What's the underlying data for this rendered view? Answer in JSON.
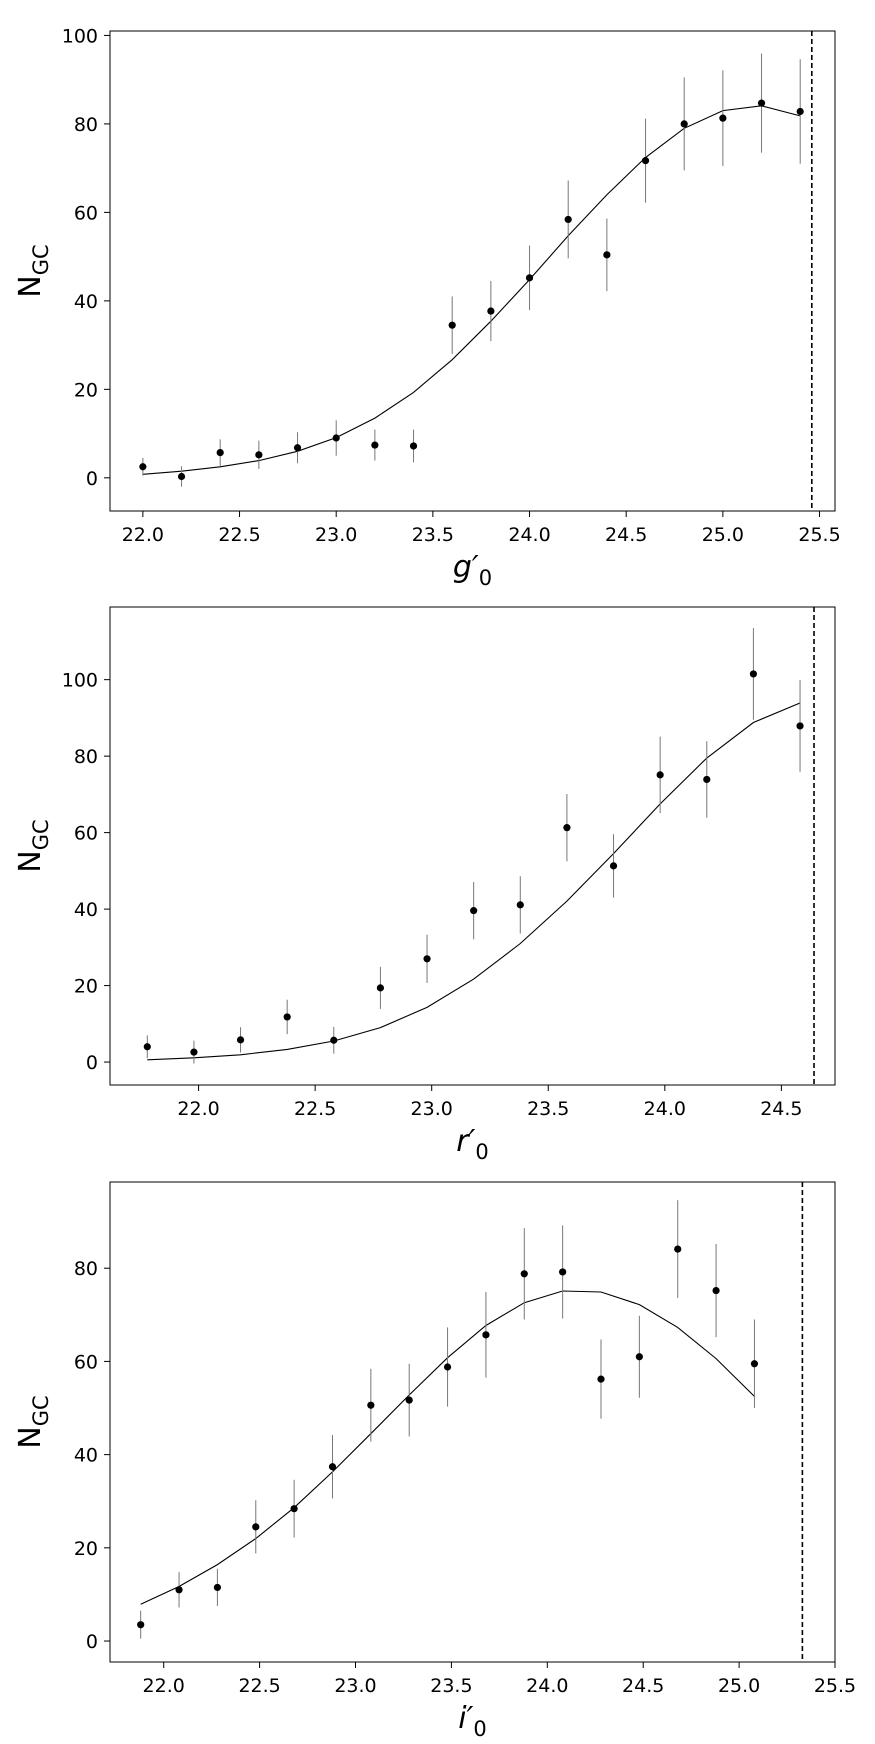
{
  "chart_data": [
    {
      "type": "scatter",
      "panel": "g",
      "xlabel": "g′",
      "xlabel_sub": "0",
      "ylabel": "N",
      "ylabel_sub": "GC",
      "xlim": [
        21.83,
        25.58
      ],
      "ylim": [
        -7.5,
        101
      ],
      "xticks": [
        22.0,
        22.5,
        23.0,
        23.5,
        24.0,
        24.5,
        25.0,
        25.5
      ],
      "yticks": [
        0,
        20,
        40,
        60,
        80,
        100
      ],
      "points": [
        {
          "x": 22.0,
          "y": 2.5,
          "err": 2.0
        },
        {
          "x": 22.2,
          "y": 0.3,
          "err": 2.3
        },
        {
          "x": 22.4,
          "y": 5.7,
          "err": 3.0
        },
        {
          "x": 22.6,
          "y": 5.2,
          "err": 3.2
        },
        {
          "x": 22.8,
          "y": 6.8,
          "err": 3.5
        },
        {
          "x": 23.0,
          "y": 9.0,
          "err": 4.0
        },
        {
          "x": 23.2,
          "y": 7.4,
          "err": 3.5
        },
        {
          "x": 23.4,
          "y": 7.2,
          "err": 3.7
        },
        {
          "x": 23.6,
          "y": 34.5,
          "err": 6.5
        },
        {
          "x": 23.8,
          "y": 37.7,
          "err": 6.8
        },
        {
          "x": 24.0,
          "y": 45.2,
          "err": 7.3
        },
        {
          "x": 24.2,
          "y": 58.4,
          "err": 8.8
        },
        {
          "x": 24.4,
          "y": 50.4,
          "err": 8.2
        },
        {
          "x": 24.6,
          "y": 71.7,
          "err": 9.5
        },
        {
          "x": 24.8,
          "y": 80.0,
          "err": 10.5
        },
        {
          "x": 25.0,
          "y": 81.3,
          "err": 10.8
        },
        {
          "x": 25.2,
          "y": 84.7,
          "err": 11.2
        },
        {
          "x": 25.4,
          "y": 82.8,
          "err": 11.8
        }
      ],
      "curve": [
        [
          22.0,
          0.8
        ],
        [
          22.2,
          1.5
        ],
        [
          22.4,
          2.5
        ],
        [
          22.6,
          3.9
        ],
        [
          22.8,
          6.0
        ],
        [
          23.0,
          9.1
        ],
        [
          23.2,
          13.5
        ],
        [
          23.4,
          19.3
        ],
        [
          23.6,
          26.7
        ],
        [
          23.8,
          35.4
        ],
        [
          24.0,
          44.8
        ],
        [
          24.2,
          54.7
        ],
        [
          24.4,
          64.0
        ],
        [
          24.6,
          72.4
        ],
        [
          24.8,
          79.0
        ],
        [
          25.0,
          83.0
        ],
        [
          25.2,
          84.1
        ],
        [
          25.4,
          81.8
        ]
      ],
      "limit_line_x": 25.46
    },
    {
      "type": "scatter",
      "panel": "r",
      "xlabel": "r′",
      "xlabel_sub": "0",
      "ylabel": "N",
      "ylabel_sub": "GC",
      "xlim": [
        21.62,
        24.73
      ],
      "ylim": [
        -6,
        119
      ],
      "xticks": [
        22.0,
        22.5,
        23.0,
        23.5,
        24.0,
        24.5
      ],
      "yticks": [
        0,
        20,
        40,
        60,
        80,
        100
      ],
      "points": [
        {
          "x": 21.78,
          "y": 4.0,
          "err": 3.0
        },
        {
          "x": 21.98,
          "y": 2.6,
          "err": 3.0
        },
        {
          "x": 22.18,
          "y": 5.8,
          "err": 3.3
        },
        {
          "x": 22.38,
          "y": 11.8,
          "err": 4.5
        },
        {
          "x": 22.58,
          "y": 5.7,
          "err": 3.5
        },
        {
          "x": 22.78,
          "y": 19.4,
          "err": 5.5
        },
        {
          "x": 22.98,
          "y": 27.0,
          "err": 6.3
        },
        {
          "x": 23.18,
          "y": 39.6,
          "err": 7.5
        },
        {
          "x": 23.38,
          "y": 41.1,
          "err": 7.5
        },
        {
          "x": 23.58,
          "y": 61.3,
          "err": 8.8
        },
        {
          "x": 23.78,
          "y": 51.3,
          "err": 8.3
        },
        {
          "x": 23.98,
          "y": 75.1,
          "err": 10.0
        },
        {
          "x": 24.18,
          "y": 73.9,
          "err": 10.0
        },
        {
          "x": 24.38,
          "y": 101.5,
          "err": 12.0
        },
        {
          "x": 24.58,
          "y": 87.9,
          "err": 12.0
        }
      ],
      "curve": [
        [
          21.78,
          0.6
        ],
        [
          21.98,
          1.1
        ],
        [
          22.18,
          1.9
        ],
        [
          22.38,
          3.3
        ],
        [
          22.58,
          5.5
        ],
        [
          22.78,
          9.0
        ],
        [
          22.98,
          14.3
        ],
        [
          23.18,
          21.7
        ],
        [
          23.38,
          31.0
        ],
        [
          23.58,
          42.1
        ],
        [
          23.78,
          54.5
        ],
        [
          23.98,
          67.5
        ],
        [
          24.18,
          79.5
        ],
        [
          24.38,
          88.8
        ],
        [
          24.58,
          93.9
        ]
      ],
      "limit_line_x": 24.64
    },
    {
      "type": "scatter",
      "panel": "i",
      "xlabel": "i′",
      "xlabel_sub": "0",
      "ylabel": "N",
      "ylabel_sub": "GC",
      "xlim": [
        21.72,
        25.5
      ],
      "ylim": [
        -4.5,
        98.5
      ],
      "xticks": [
        22.0,
        22.5,
        23.0,
        23.5,
        24.0,
        24.5,
        25.0,
        25.5
      ],
      "yticks": [
        0,
        20,
        40,
        60,
        80
      ],
      "points": [
        {
          "x": 21.88,
          "y": 3.5,
          "err": 3.0
        },
        {
          "x": 22.08,
          "y": 11.0,
          "err": 3.8
        },
        {
          "x": 22.28,
          "y": 11.5,
          "err": 4.0
        },
        {
          "x": 22.48,
          "y": 24.5,
          "err": 5.7
        },
        {
          "x": 22.68,
          "y": 28.4,
          "err": 6.2
        },
        {
          "x": 22.88,
          "y": 37.4,
          "err": 6.8
        },
        {
          "x": 23.08,
          "y": 50.6,
          "err": 7.8
        },
        {
          "x": 23.28,
          "y": 51.7,
          "err": 7.8
        },
        {
          "x": 23.48,
          "y": 58.8,
          "err": 8.5
        },
        {
          "x": 23.68,
          "y": 65.7,
          "err": 9.2
        },
        {
          "x": 23.88,
          "y": 78.8,
          "err": 9.8
        },
        {
          "x": 24.08,
          "y": 79.2,
          "err": 10.0
        },
        {
          "x": 24.28,
          "y": 56.2,
          "err": 8.5
        },
        {
          "x": 24.48,
          "y": 61.0,
          "err": 8.8
        },
        {
          "x": 24.68,
          "y": 84.1,
          "err": 10.5
        },
        {
          "x": 24.88,
          "y": 75.2,
          "err": 10.0
        },
        {
          "x": 25.08,
          "y": 59.5,
          "err": 9.5
        }
      ],
      "curve": [
        [
          21.88,
          7.9
        ],
        [
          22.08,
          11.7
        ],
        [
          22.28,
          16.4
        ],
        [
          22.48,
          22.0
        ],
        [
          22.68,
          28.6
        ],
        [
          22.88,
          36.3
        ],
        [
          23.08,
          44.5
        ],
        [
          23.28,
          52.8
        ],
        [
          23.48,
          60.8
        ],
        [
          23.68,
          67.7
        ],
        [
          23.88,
          72.6
        ],
        [
          24.08,
          75.1
        ],
        [
          24.28,
          74.9
        ],
        [
          24.48,
          72.2
        ],
        [
          24.68,
          67.3
        ],
        [
          24.88,
          60.6
        ],
        [
          25.08,
          52.5
        ]
      ],
      "limit_line_x": 25.33
    }
  ]
}
